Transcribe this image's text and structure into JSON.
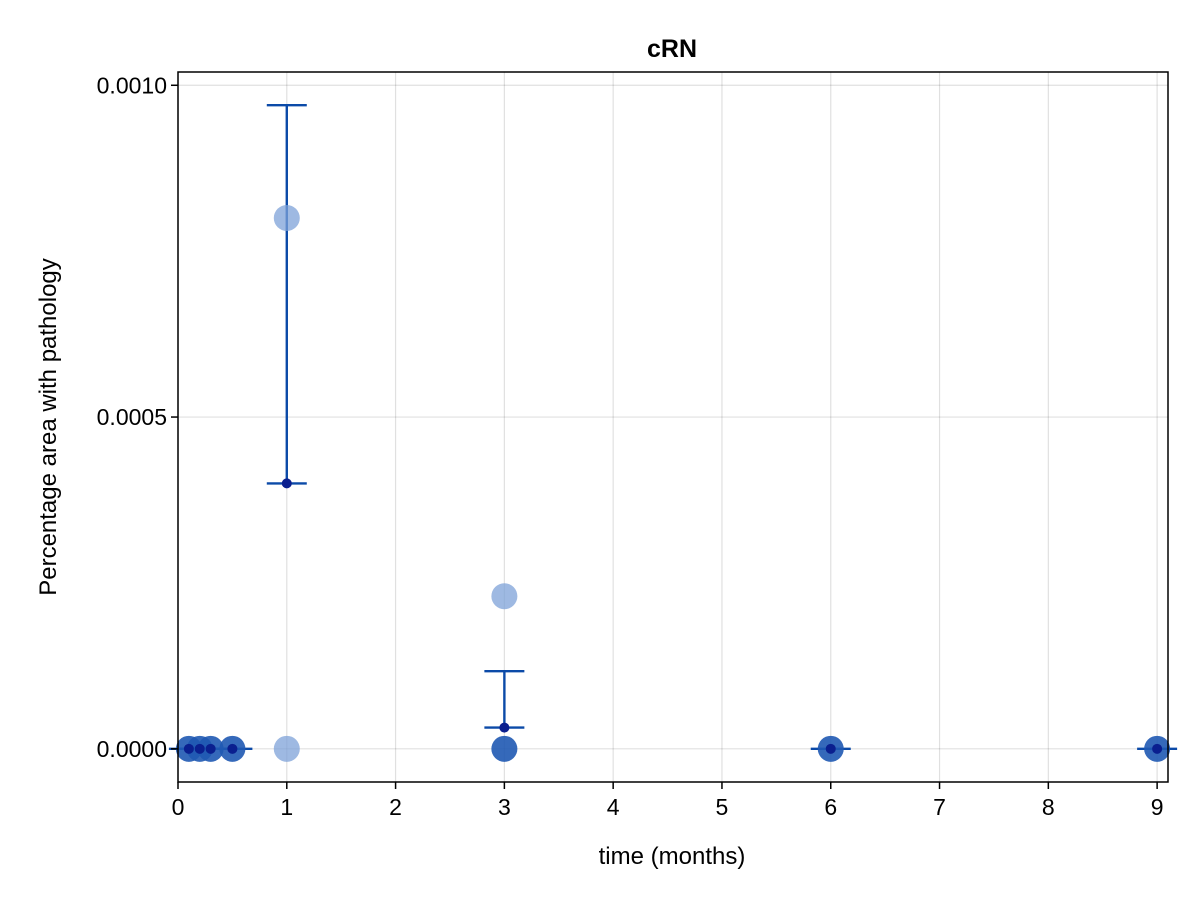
{
  "chart_data": {
    "type": "scatter",
    "title": "cRN",
    "xlabel": "time (months)",
    "ylabel": "Percentage area with pathology",
    "xlim": [
      0,
      9.1
    ],
    "ylim": [
      -5e-05,
      0.00102
    ],
    "x_ticks": [
      0,
      1,
      2,
      3,
      4,
      5,
      6,
      7,
      8,
      9
    ],
    "x_tick_labels": [
      "0",
      "1",
      "2",
      "3",
      "4",
      "5",
      "6",
      "7",
      "8",
      "9"
    ],
    "y_ticks": [
      0,
      0.0005,
      0.001
    ],
    "y_tick_labels": [
      "0.0000",
      "0.0005",
      "0.0010"
    ],
    "grid": true,
    "colors": {
      "points_light": "#7ea1d8",
      "points_dark": "#1f59b3",
      "mean_marker": "#0a1f8f",
      "error_bar": "#0b4aa8"
    },
    "individual_points": [
      {
        "x": 0.1,
        "y": 0,
        "shade": "dark"
      },
      {
        "x": 0.2,
        "y": 0,
        "shade": "dark"
      },
      {
        "x": 0.3,
        "y": 0,
        "shade": "dark"
      },
      {
        "x": 0.5,
        "y": 0,
        "shade": "dark"
      },
      {
        "x": 1,
        "y": 0.0008,
        "shade": "light"
      },
      {
        "x": 1,
        "y": 0,
        "shade": "light"
      },
      {
        "x": 3,
        "y": 0.00023,
        "shade": "light"
      },
      {
        "x": 3,
        "y": 0,
        "shade": "dark"
      },
      {
        "x": 6,
        "y": 0,
        "shade": "dark"
      },
      {
        "x": 9,
        "y": 0,
        "shade": "dark"
      }
    ],
    "group_means": [
      {
        "x": 0.1,
        "mean": 0,
        "lower": 0,
        "upper": 0
      },
      {
        "x": 0.2,
        "mean": 0,
        "lower": 0,
        "upper": 0
      },
      {
        "x": 0.3,
        "mean": 0,
        "lower": 0,
        "upper": 0
      },
      {
        "x": 0.5,
        "mean": 0,
        "lower": 0,
        "upper": 0
      },
      {
        "x": 1,
        "mean": 0.0004,
        "lower": 0.0004,
        "upper": 0.00097
      },
      {
        "x": 3,
        "mean": 3.2e-05,
        "lower": 3.2e-05,
        "upper": 0.000117
      },
      {
        "x": 6,
        "mean": 0,
        "lower": 0,
        "upper": 0
      },
      {
        "x": 9,
        "mean": 0,
        "lower": 0,
        "upper": 0
      }
    ]
  }
}
